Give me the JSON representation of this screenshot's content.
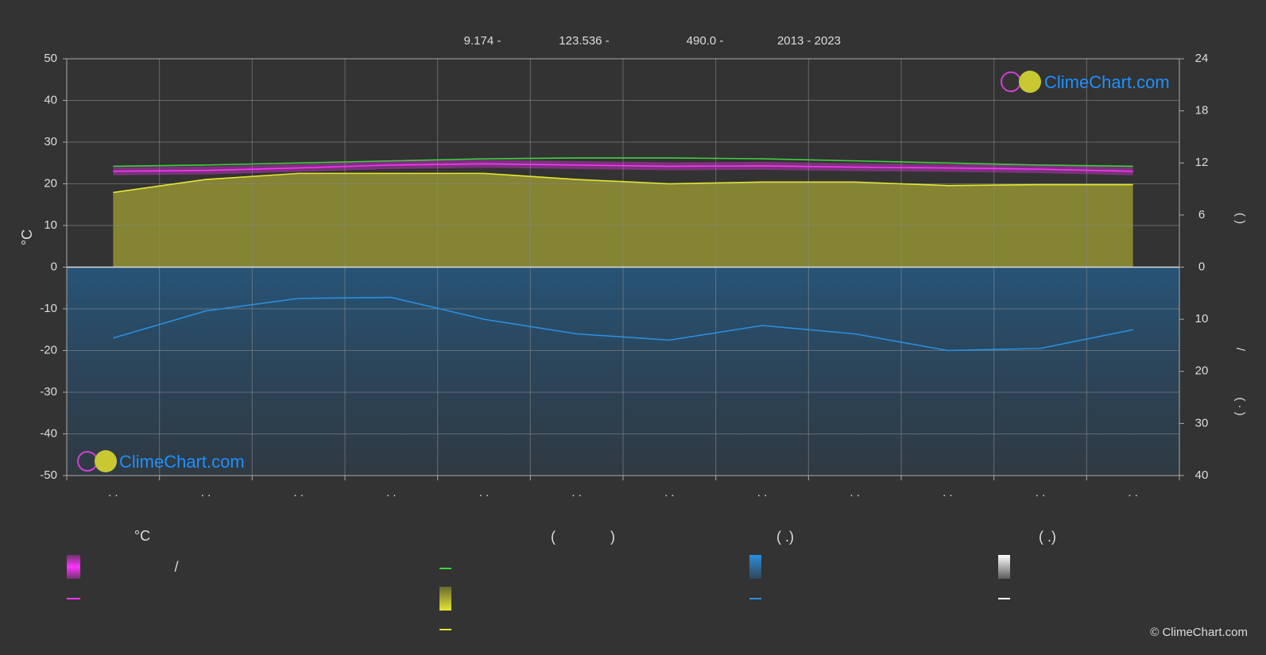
{
  "chart_data": {
    "type": "line",
    "header": [
      "9.174 -",
      "123.536 -",
      "490.0 -",
      "2013 - 2023"
    ],
    "y_label": "°C",
    "y2_labels": [
      "(    )",
      "/",
      "( ·  )"
    ],
    "categories": [
      ". .",
      ". .",
      ". .",
      ". .",
      ". .",
      ". .",
      ". .",
      ". .",
      ". .",
      ". .",
      ". .",
      ". ."
    ],
    "ylim": [
      -50,
      50
    ],
    "yticks": [
      50,
      40,
      30,
      20,
      10,
      0,
      -10,
      -20,
      -30,
      -40,
      -50
    ],
    "y2lim": [
      0,
      24
    ],
    "y2ticks": [
      0,
      6,
      12,
      18,
      24
    ],
    "y3lim": [
      0,
      40
    ],
    "y3ticks": [
      10,
      20,
      30,
      40
    ],
    "grid": true,
    "series": [
      {
        "color": "#3fd23f",
        "values": [
          24.2,
          24.5,
          25.0,
          25.5,
          26.0,
          26.2,
          26.2,
          26.0,
          25.5,
          25.0,
          24.5,
          24.2
        ]
      },
      {
        "color": "#ff33ff",
        "values": [
          23.0,
          23.2,
          23.8,
          24.5,
          24.8,
          24.5,
          24.2,
          24.3,
          24.0,
          23.8,
          23.5,
          23.0
        ]
      },
      {
        "color": "#e6e632",
        "axis": "y2",
        "values": [
          8.6,
          10.1,
          10.8,
          10.8,
          10.8,
          10.1,
          9.6,
          9.8,
          9.8,
          9.4,
          9.5,
          9.5
        ]
      },
      {
        "color": "#2a8fe0",
        "axis": "y3",
        "values": [
          13.6,
          8.4,
          6.0,
          5.8,
          10.0,
          12.8,
          14.0,
          11.2,
          12.8,
          16.0,
          15.6,
          12.0
        ]
      }
    ],
    "legend": {
      "headers": [
        "°C",
        "(",
        ")",
        "(   .)",
        "(    .)"
      ],
      "texts": [
        "/"
      ]
    },
    "watermark": "ClimeChart.com",
    "copyright": "© ClimeChart.com"
  }
}
